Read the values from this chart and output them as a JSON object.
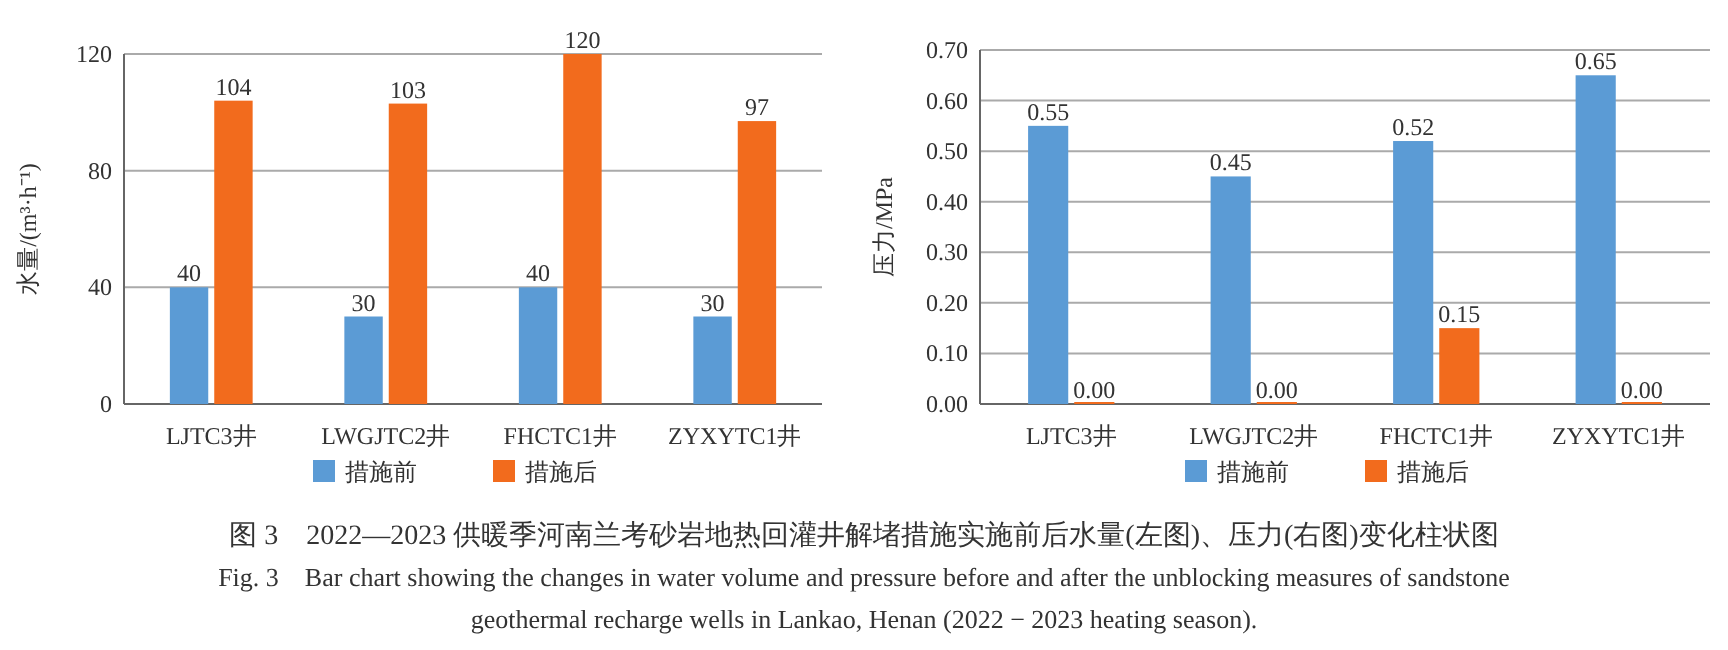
{
  "chart_data": [
    {
      "type": "bar",
      "ylabel": "水量/(m³·h⁻¹)",
      "categories": [
        "LJTC3井",
        "LWGJTC2井",
        "FHCTC1井",
        "ZYXYTC1井"
      ],
      "series": [
        {
          "name": "措施前",
          "color": "#5b9bd5",
          "values": [
            40,
            30,
            40,
            30
          ]
        },
        {
          "name": "措施后",
          "color": "#f26b1d",
          "values": [
            104,
            103,
            120,
            97
          ]
        }
      ],
      "ylim": [
        0,
        120
      ],
      "yticks": [
        0,
        40,
        80,
        120
      ],
      "grid": "y",
      "legend": "bottom",
      "data_labels": true,
      "annotations": [
        "图 3　2022—2023 供暖季河南兰考砂岩地热回灌井解堵措施实施前后水量(左图)、压力(右图)变化柱状图",
        "Fig. 3　Bar chart showing the changes in water volume and pressure before and after the unblocking measures of sandstone",
        "geothermal recharge wells in Lankao, Henan (2022 − 2023 heating season)."
      ]
    },
    {
      "type": "bar",
      "ylabel": "压力/MPa",
      "categories": [
        "LJTC3井",
        "LWGJTC2井",
        "FHCTC1井",
        "ZYXYTC1井"
      ],
      "series": [
        {
          "name": "措施前",
          "color": "#5b9bd5",
          "values": [
            0.55,
            0.45,
            0.52,
            0.65
          ],
          "value_labels": [
            "0.55",
            "0.45",
            "0.52",
            "0.65"
          ]
        },
        {
          "name": "措施后",
          "color": "#f26b1d",
          "values": [
            0,
            0,
            0.15,
            0
          ],
          "value_labels": [
            "0.00",
            "0.00",
            "0.15",
            "0.00"
          ]
        }
      ],
      "ylim": [
        0,
        0.7
      ],
      "yticks": [
        {
          "value": 0,
          "label": "0.00"
        },
        {
          "value": 0.1,
          "label": "0.10"
        },
        {
          "value": 0.2,
          "label": "0.20"
        },
        {
          "value": 0.3,
          "label": "0.30"
        },
        {
          "value": 0.4,
          "label": "0.40"
        },
        {
          "value": 0.5,
          "label": "0.50"
        },
        {
          "value": 0.6,
          "label": "0.60"
        },
        {
          "value": 0.7,
          "label": "0.70"
        }
      ],
      "grid": "y",
      "legend": "bottom"
    }
  ]
}
